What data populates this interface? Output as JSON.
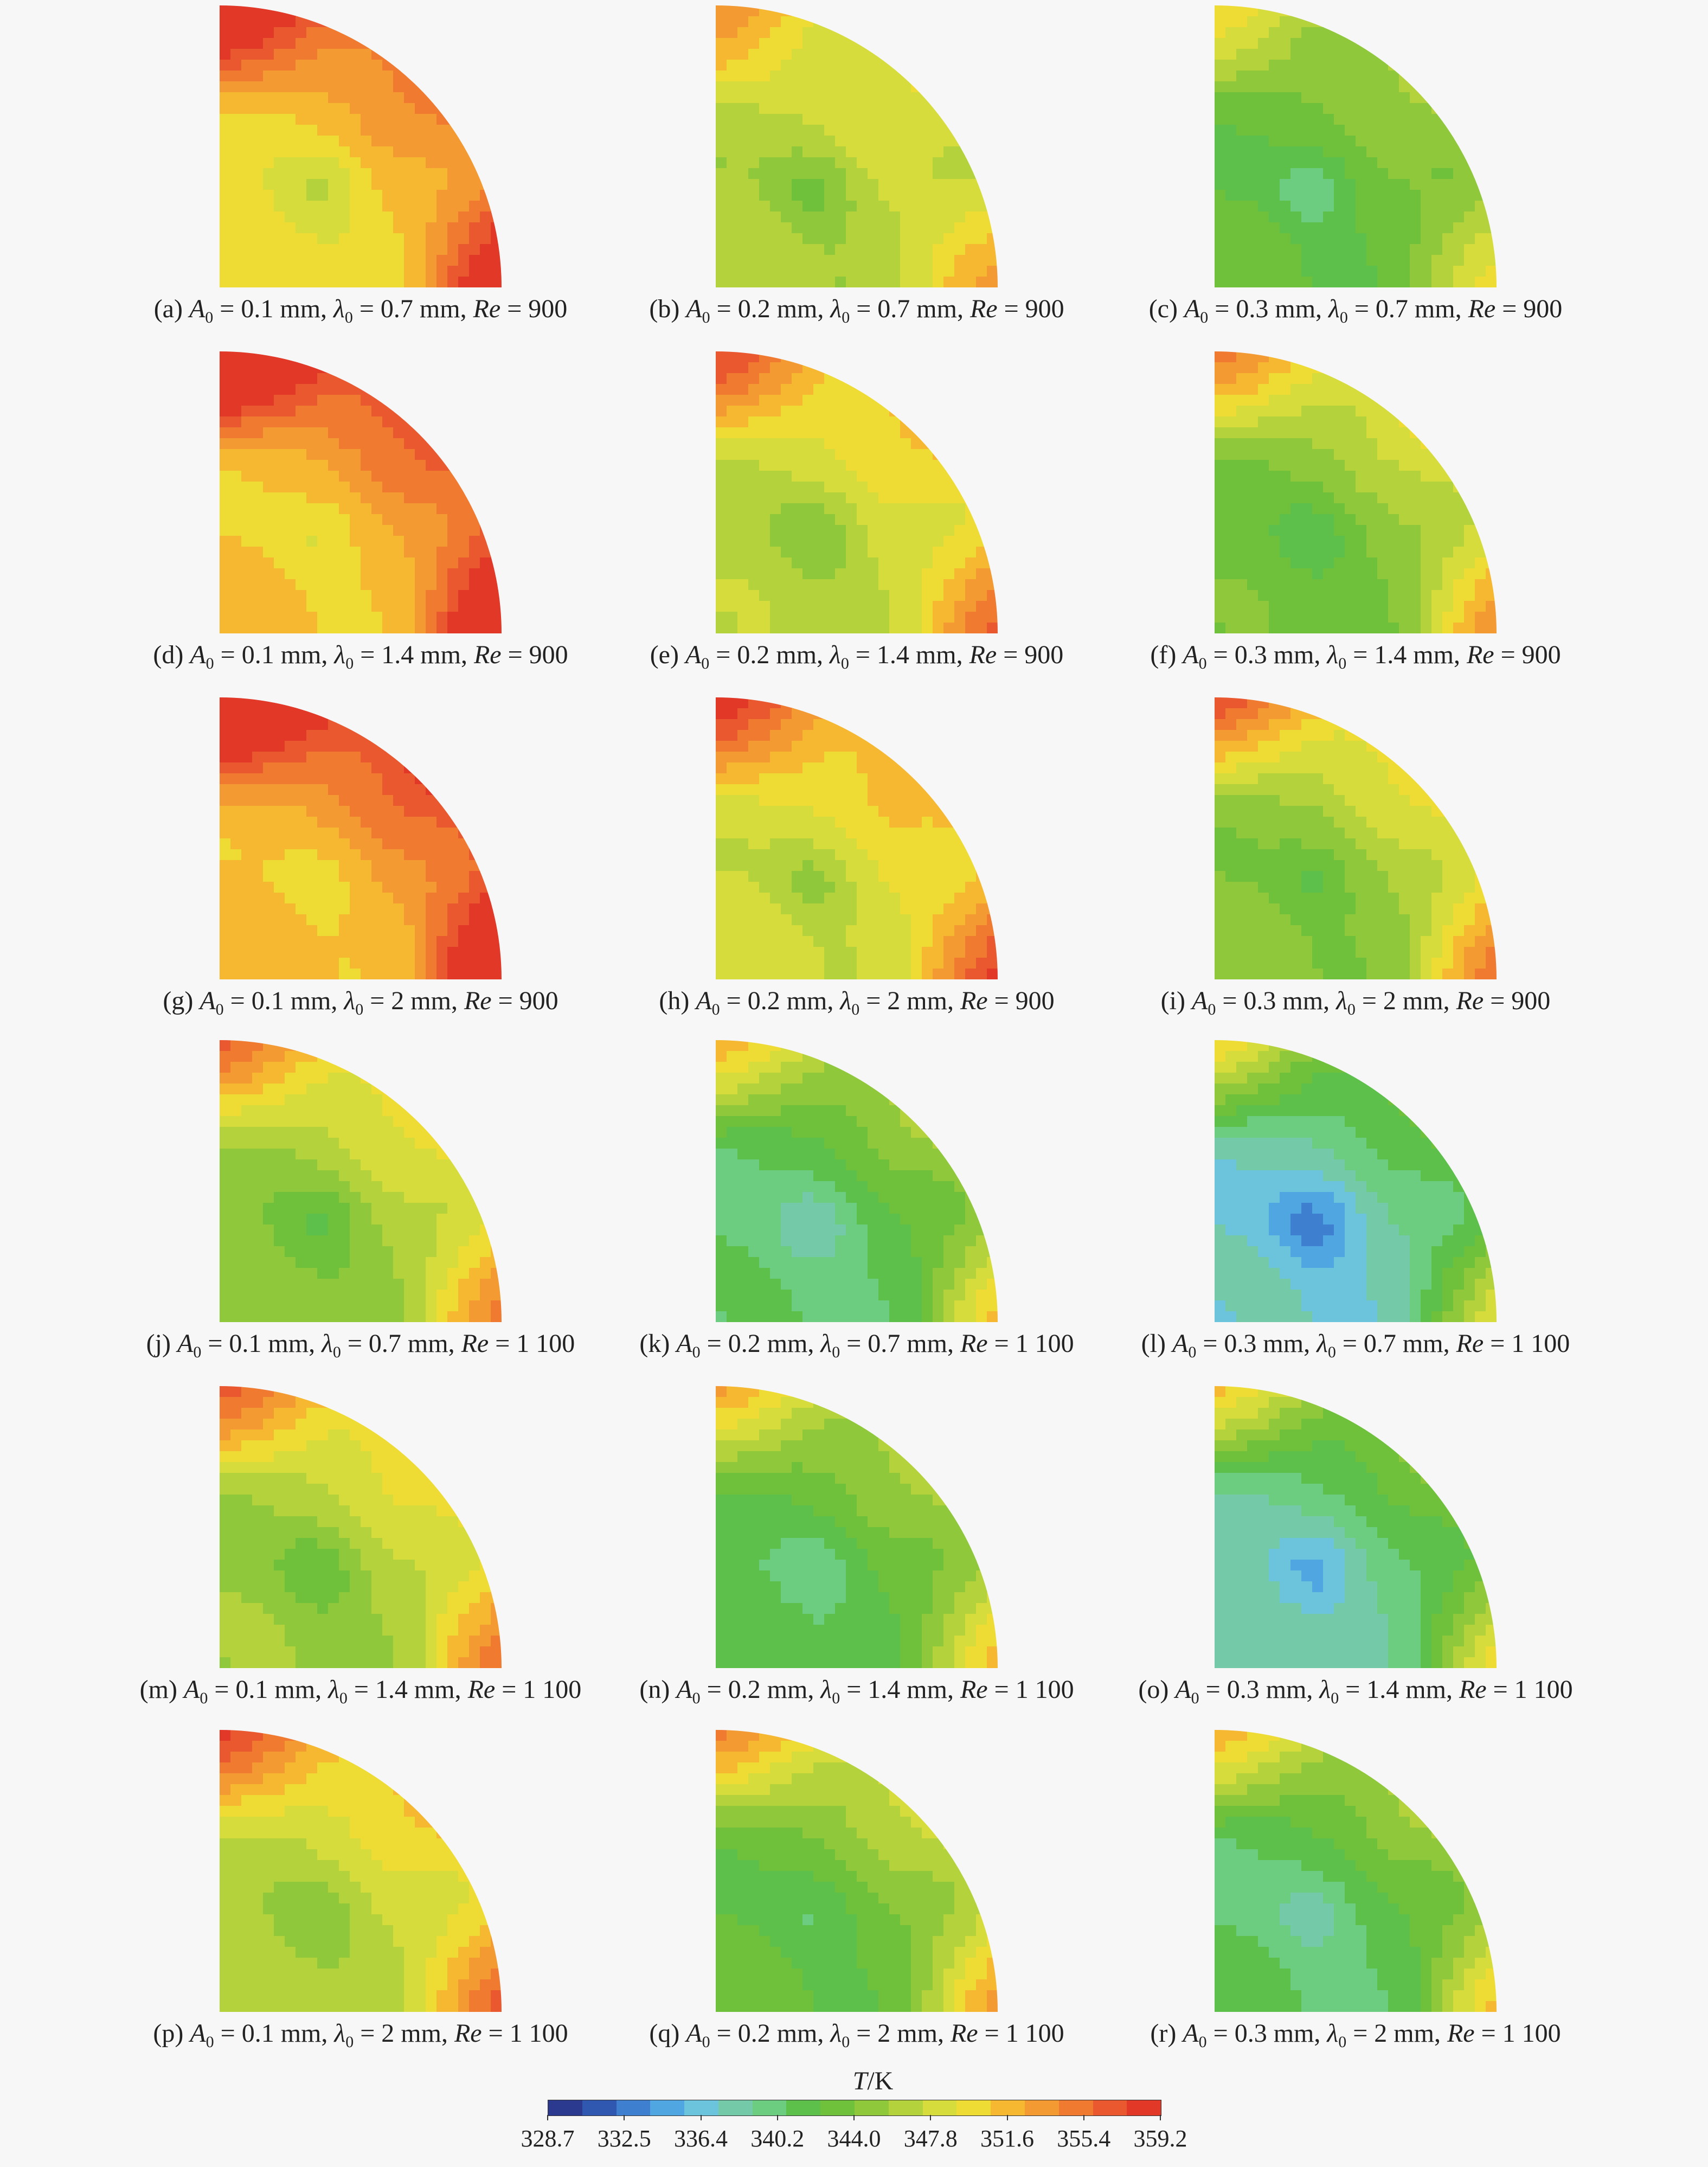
{
  "chart_data": {
    "type": "heatmap",
    "description_colorbar": "T/K",
    "colorbar": {
      "label_var": "T",
      "label_unit": "/K",
      "min": 328.7,
      "max": 359.2,
      "ticks": [
        "328.7",
        "332.5",
        "336.4",
        "340.2",
        "344.0",
        "347.8",
        "351.6",
        "355.4",
        "359.2"
      ],
      "colors": [
        "#2b3a8f",
        "#3158b0",
        "#3f7fd0",
        "#4fa6e0",
        "#6cc4dc",
        "#74c9a8",
        "#6ccc80",
        "#5cc04a",
        "#6fc03a",
        "#8fc83a",
        "#b4d23c",
        "#d6dc3c",
        "#eedc34",
        "#f5b830",
        "#f39a32",
        "#ef7a30",
        "#ea5830",
        "#e23828"
      ]
    },
    "panels": [
      {
        "id": "(a)",
        "A0": "0.1",
        "lambda0": "0.7",
        "Re": "900",
        "center_T": 346.0,
        "corner_T": 357.5,
        "arc_T": 355.0,
        "base_T": 351.0
      },
      {
        "id": "(b)",
        "A0": "0.2",
        "lambda0": "0.7",
        "Re": "900",
        "center_T": 342.5,
        "corner_T": 351.0,
        "arc_T": 349.0,
        "base_T": 347.5
      },
      {
        "id": "(c)",
        "A0": "0.3",
        "lambda0": "0.7",
        "Re": "900",
        "center_T": 338.5,
        "corner_T": 346.5,
        "arc_T": 346.0,
        "base_T": 343.5
      },
      {
        "id": "(d)",
        "A0": "0.1",
        "lambda0": "1.4",
        "Re": "900",
        "center_T": 348.0,
        "corner_T": 359.0,
        "arc_T": 357.0,
        "base_T": 352.0
      },
      {
        "id": "(e)",
        "A0": "0.2",
        "lambda0": "1.4",
        "Re": "900",
        "center_T": 343.0,
        "corner_T": 353.5,
        "arc_T": 351.0,
        "base_T": 348.0
      },
      {
        "id": "(f)",
        "A0": "0.3",
        "lambda0": "1.4",
        "Re": "900",
        "center_T": 340.0,
        "corner_T": 349.5,
        "arc_T": 349.0,
        "base_T": 344.5
      },
      {
        "id": "(g)",
        "A0": "0.1",
        "lambda0": "2",
        "Re": "900",
        "center_T": 348.5,
        "corner_T": 359.2,
        "arc_T": 357.5,
        "base_T": 352.5
      },
      {
        "id": "(h)",
        "A0": "0.2",
        "lambda0": "2",
        "Re": "900",
        "center_T": 344.0,
        "corner_T": 355.0,
        "arc_T": 352.0,
        "base_T": 349.0
      },
      {
        "id": "(i)",
        "A0": "0.3",
        "lambda0": "2",
        "Re": "900",
        "center_T": 341.0,
        "corner_T": 351.5,
        "arc_T": 350.0,
        "base_T": 345.5
      },
      {
        "id": "(j)",
        "A0": "0.1",
        "lambda0": "0.7",
        "Re": "1 100",
        "center_T": 341.0,
        "corner_T": 351.0,
        "arc_T": 350.0,
        "base_T": 346.0
      },
      {
        "id": "(k)",
        "A0": "0.2",
        "lambda0": "0.7",
        "Re": "1 100",
        "center_T": 336.5,
        "corner_T": 346.5,
        "arc_T": 346.0,
        "base_T": 341.5
      },
      {
        "id": "(l)",
        "A0": "0.3",
        "lambda0": "0.7",
        "Re": "1 100",
        "center_T": 332.0,
        "corner_T": 345.5,
        "arc_T": 342.5,
        "base_T": 338.5
      },
      {
        "id": "(m)",
        "A0": "0.1",
        "lambda0": "1.4",
        "Re": "1 100",
        "center_T": 341.5,
        "corner_T": 351.5,
        "arc_T": 350.5,
        "base_T": 346.5
      },
      {
        "id": "(n)",
        "A0": "0.2",
        "lambda0": "1.4",
        "Re": "1 100",
        "center_T": 338.0,
        "corner_T": 347.5,
        "arc_T": 346.5,
        "base_T": 342.5
      },
      {
        "id": "(o)",
        "A0": "0.3",
        "lambda0": "1.4",
        "Re": "1 100",
        "center_T": 334.0,
        "corner_T": 345.5,
        "arc_T": 344.0,
        "base_T": 339.5
      },
      {
        "id": "(p)",
        "A0": "0.1",
        "lambda0": "2",
        "Re": "1 100",
        "center_T": 343.0,
        "corner_T": 353.5,
        "arc_T": 351.0,
        "base_T": 347.5
      },
      {
        "id": "(q)",
        "A0": "0.2",
        "lambda0": "2",
        "Re": "1 100",
        "center_T": 339.5,
        "corner_T": 349.0,
        "arc_T": 348.0,
        "base_T": 343.5
      },
      {
        "id": "(r)",
        "A0": "0.3",
        "lambda0": "2",
        "Re": "1 100",
        "center_T": 337.0,
        "corner_T": 346.5,
        "arc_T": 346.0,
        "base_T": 341.5
      }
    ]
  },
  "caption_parts": {
    "A": "A",
    "A_sub": "0",
    "lambda": "λ",
    "lambda_sub": "0",
    "unit": "mm",
    "Re": "Re",
    "eq": " = "
  }
}
